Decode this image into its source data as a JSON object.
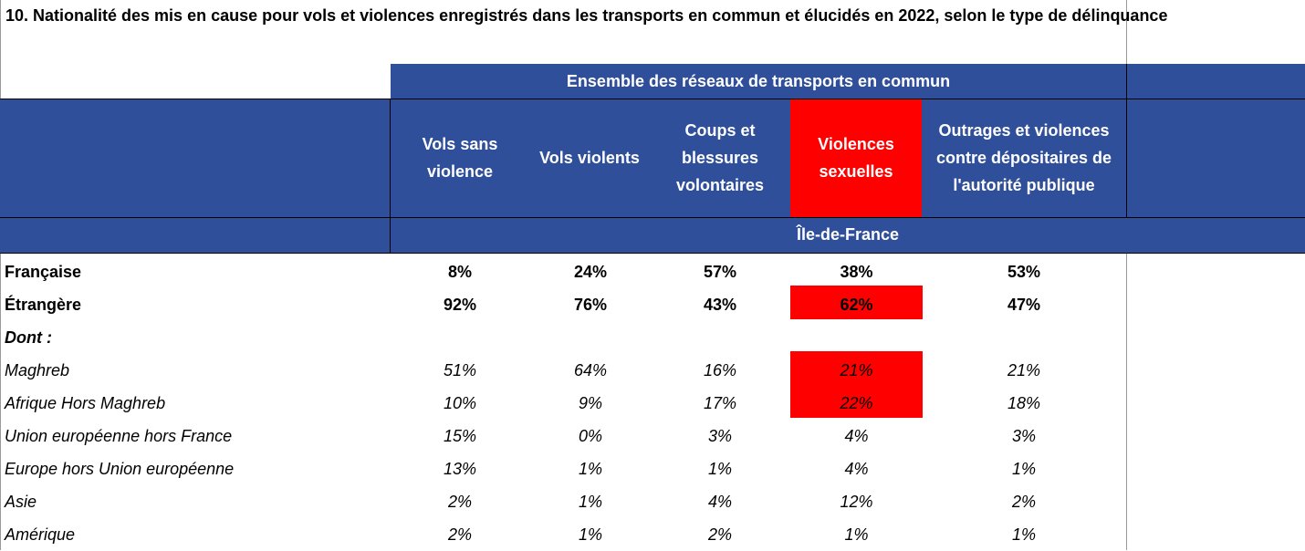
{
  "title": "10. Nationalité des mis en cause pour vols et violences enregistrés dans les transports en commun et élucidés en 2022, selon le type de délinquance",
  "group_header": "Ensemble des réseaux de transports en commun",
  "region_header": "Île-de-France",
  "columns": [
    {
      "label": "Vols sans violence"
    },
    {
      "label": "Vols violents"
    },
    {
      "label": "Coups et blessures volontaires"
    },
    {
      "label": "Violences sexuelles"
    },
    {
      "label": "Outrages et violences contre dépositaires de l'autorité publique"
    }
  ],
  "highlight_color": "#ff0000",
  "header_color": "#2f4f9b",
  "rows": [
    {
      "label": "Française",
      "values": [
        "8%",
        "24%",
        "57%",
        "38%",
        "53%"
      ]
    },
    {
      "label": "Étrangère",
      "values": [
        "92%",
        "76%",
        "43%",
        "62%",
        "47%"
      ]
    },
    {
      "label": "Dont :",
      "values": [
        "",
        "",
        "",
        "",
        ""
      ]
    },
    {
      "label": "Maghreb",
      "values": [
        "51%",
        "64%",
        "16%",
        "21%",
        "21%"
      ]
    },
    {
      "label": "Afrique Hors Maghreb",
      "values": [
        "10%",
        "9%",
        "17%",
        "22%",
        "18%"
      ]
    },
    {
      "label": "Union européenne hors France",
      "values": [
        "15%",
        "0%",
        "3%",
        "4%",
        "3%"
      ]
    },
    {
      "label": "Europe hors Union européenne",
      "values": [
        "13%",
        "1%",
        "1%",
        "4%",
        "1%"
      ]
    },
    {
      "label": "Asie",
      "values": [
        "2%",
        "1%",
        "4%",
        "12%",
        "2%"
      ]
    },
    {
      "label": "Amérique",
      "values": [
        "2%",
        "1%",
        "2%",
        "1%",
        "1%"
      ]
    }
  ]
}
